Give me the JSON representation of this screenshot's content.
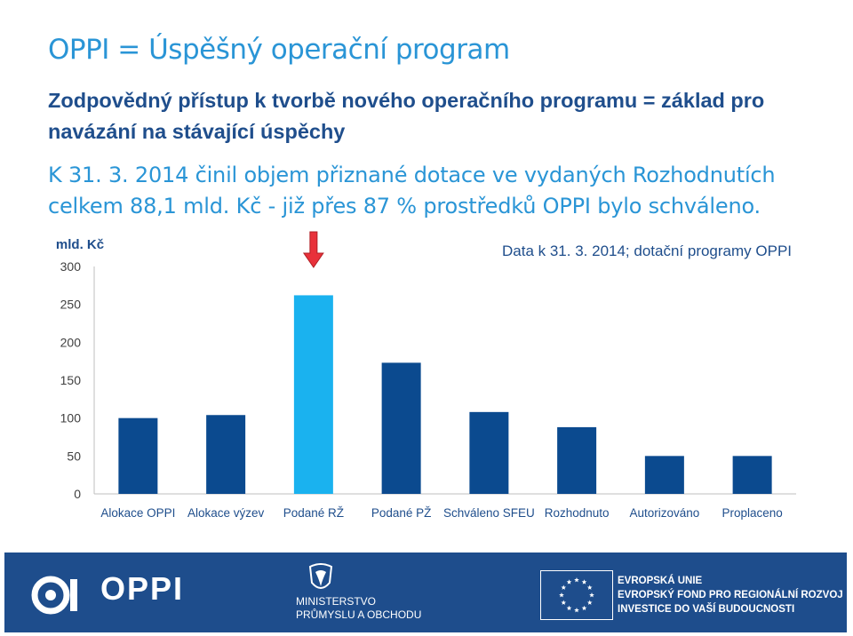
{
  "slide": {
    "title": "OPPI = Úspěšný operační program",
    "subtitle": "Zodpovědný přístup k tvorbě nového operačního programu = základ pro navázání na stávající úspěchy",
    "body": "K 31. 3. 2014 činil objem přiznané dotace ve vydaných Rozhodnutích celkem 88,1 mld. Kč - již přes 87 % prostředků OPPI bylo schváleno."
  },
  "chart_data": {
    "type": "bar",
    "title": "Data k 31. 3. 2014; dotační programy OPPI",
    "ylabel": "mld. Kč",
    "categories": [
      "Alokace OPPI",
      "Alokace výzev",
      "Podané RŽ",
      "Podané PŽ",
      "Schváleno SFEU",
      "Rozhodnuto",
      "Autorizováno",
      "Proplaceno"
    ],
    "values": [
      100,
      104,
      262,
      173,
      108,
      88,
      50,
      50
    ],
    "ylim": [
      0,
      300
    ],
    "yticks": [
      "0",
      "50",
      "100",
      "150",
      "200",
      "250",
      "300"
    ],
    "bar_color": "#0b4a8f",
    "highlight_index": 2,
    "highlight_color": "#1ab2ef",
    "arrow_color": "#e8313a",
    "grid": false
  },
  "footer": {
    "logo_text": "OPPI",
    "ministry_lines": [
      "MINISTERSTVO",
      "PRŮMYSLU A OBCHODU"
    ],
    "eu_lines": [
      "EVROPSKÁ UNIE",
      "EVROPSKÝ FOND PRO REGIONÁLNÍ ROZVOJ",
      "INVESTICE DO VAŠÍ BUDOUCNOSTI"
    ],
    "background": "#1e4d8c"
  }
}
